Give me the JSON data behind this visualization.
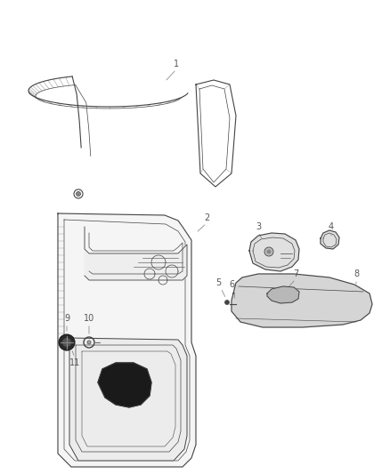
{
  "background_color": "#ffffff",
  "label_color": "#555555",
  "line_color": "#444444",
  "figsize": [
    4.38,
    5.33
  ],
  "dpi": 100
}
